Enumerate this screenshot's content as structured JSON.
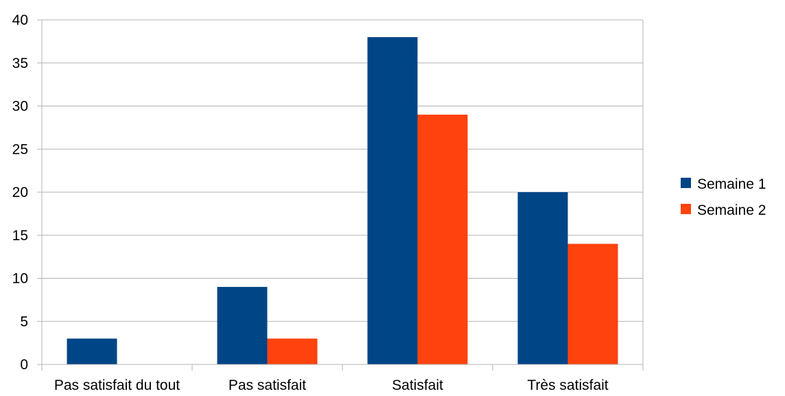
{
  "chart_data": {
    "type": "bar",
    "title": "",
    "xlabel": "",
    "ylabel": "",
    "categories": [
      "Pas satisfait du tout",
      "Pas satisfait",
      "Satisfait",
      "Très satisfait"
    ],
    "series": [
      {
        "name": "Semaine 1",
        "color": "#004586",
        "values": [
          3,
          9,
          38,
          20
        ]
      },
      {
        "name": "Semaine 2",
        "color": "#ff420e",
        "values": [
          0,
          3,
          29,
          14
        ]
      }
    ],
    "ylim": [
      0,
      40
    ],
    "yticks": [
      0,
      5,
      10,
      15,
      20,
      25,
      30,
      35,
      40
    ],
    "grid": true,
    "legend_position": "right"
  }
}
